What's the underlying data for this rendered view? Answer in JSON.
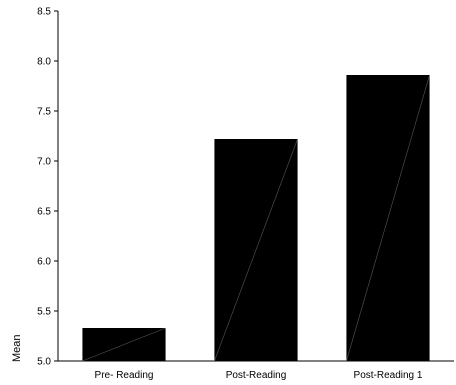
{
  "chart_data": {
    "type": "bar",
    "title": "",
    "xlabel": "",
    "ylabel": "Mean",
    "categories": [
      "Pre- Reading",
      "Post-Reading",
      "Post-Reading 1"
    ],
    "values": [
      5.33,
      7.22,
      7.86
    ],
    "ylim": [
      5.0,
      8.5
    ],
    "yticks": [
      "5.0",
      "5.5",
      "6.0",
      "6.5",
      "7.0",
      "7.5",
      "8.0",
      "8.5"
    ],
    "bar_color": "#000000",
    "grid": false,
    "legend": "none"
  }
}
